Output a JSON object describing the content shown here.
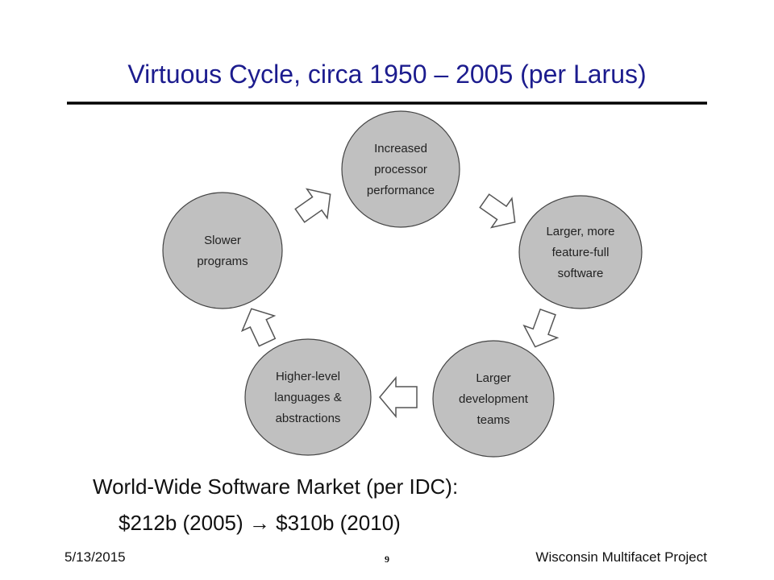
{
  "header": {
    "title": "Virtuous Cycle, circa 1950 – 2005 (per Larus)"
  },
  "nodes": [
    {
      "lines": [
        "Increased",
        "processor",
        "performance"
      ]
    },
    {
      "lines": [
        "Larger, more",
        "feature-full",
        "software"
      ]
    },
    {
      "lines": [
        "Larger",
        "development",
        "teams"
      ]
    },
    {
      "lines": [
        "Higher-level",
        "languages &",
        "abstractions"
      ]
    },
    {
      "lines": [
        "Slower",
        "programs"
      ]
    }
  ],
  "body": {
    "heading": "World-Wide Software Market (per IDC):",
    "detail": "$212b (2005) → $310b (2010)"
  },
  "footer": {
    "date": "5/13/2015",
    "page": "9",
    "project": "Wisconsin Multifacet Project"
  }
}
